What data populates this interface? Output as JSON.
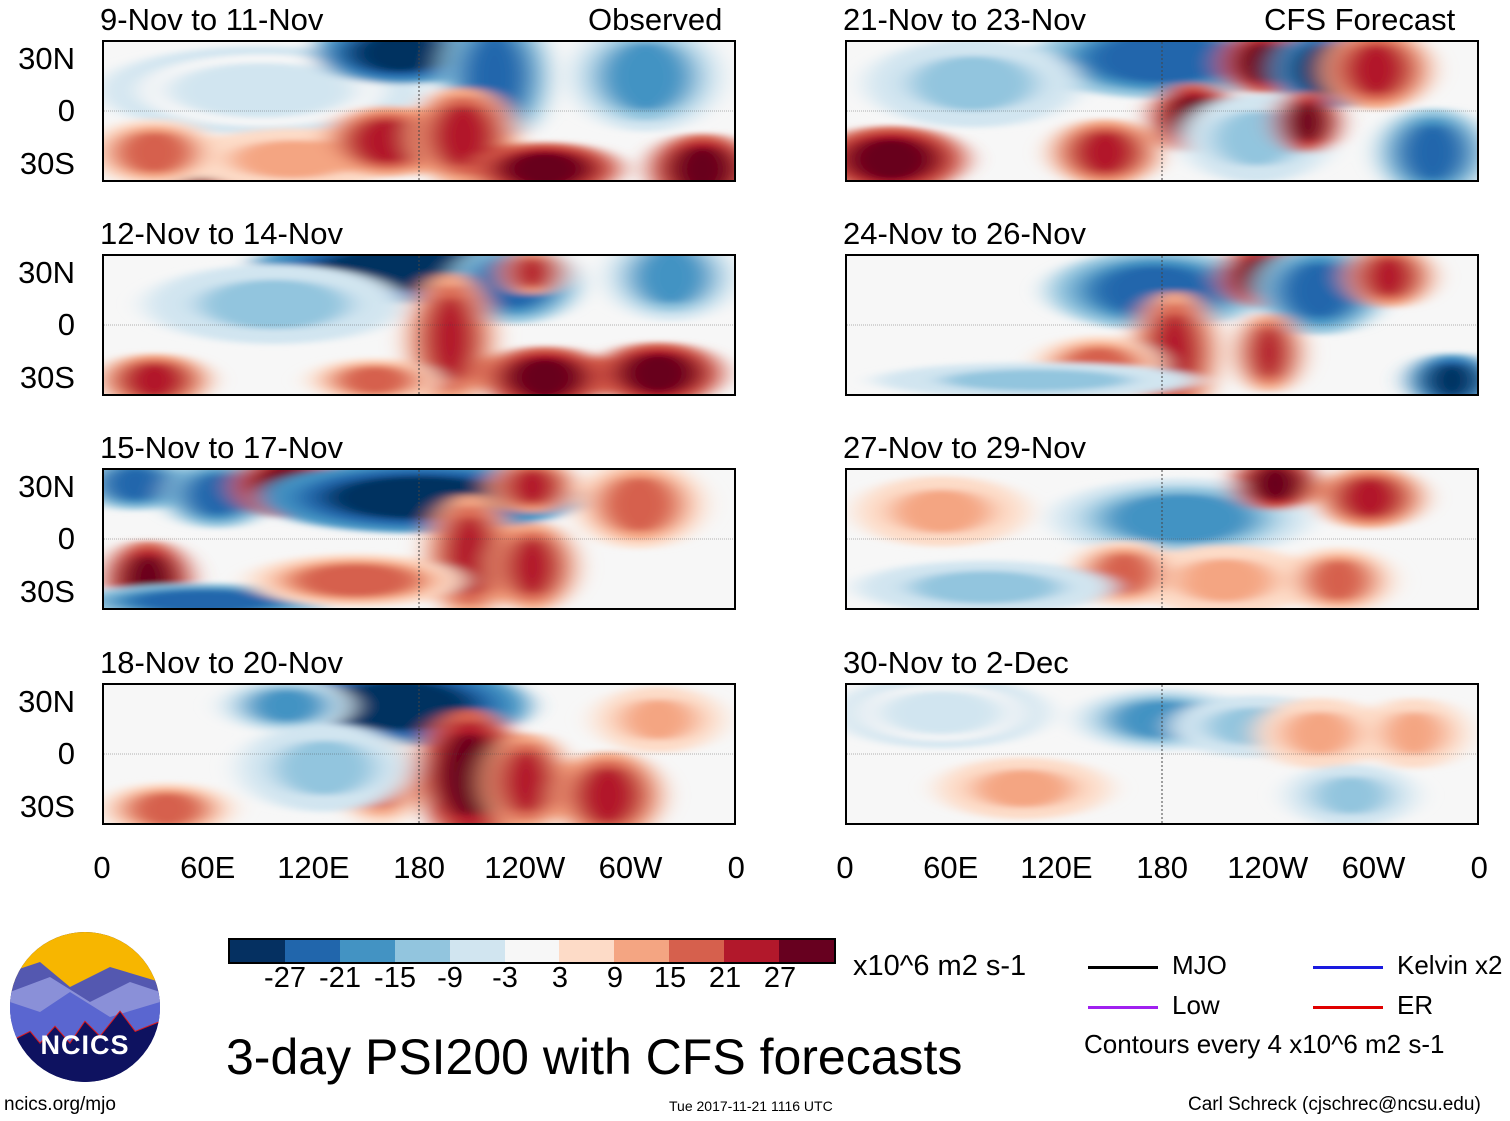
{
  "title": "3-day PSI200 with CFS forecasts",
  "left_header": "Observed",
  "right_header": "CFS Forecast",
  "panels_left": [
    "9-Nov to 11-Nov",
    "12-Nov to 14-Nov",
    "15-Nov to 17-Nov",
    "18-Nov to 20-Nov"
  ],
  "panels_right": [
    "21-Nov to 23-Nov",
    "24-Nov to 26-Nov",
    "27-Nov to 29-Nov",
    "30-Nov to 2-Dec"
  ],
  "lat_labels": [
    "30N",
    "0",
    "30S"
  ],
  "lon_labels": [
    "0",
    "60E",
    "120E",
    "180",
    "120W",
    "60W",
    "0"
  ],
  "colorbar": {
    "colors": [
      "#053061",
      "#2166ac",
      "#4393c3",
      "#92c5de",
      "#d1e5f0",
      "#f7f7f7",
      "#fddbc7",
      "#f4a582",
      "#d6604d",
      "#b2182b",
      "#67001f"
    ],
    "ticks": [
      "-27",
      "-21",
      "-15",
      "-9",
      "-3",
      "3",
      "9",
      "15",
      "21",
      "27"
    ],
    "units": "x10^6 m2 s-1"
  },
  "legend": {
    "items": [
      {
        "label": "MJO",
        "color": "#000000"
      },
      {
        "label": "Kelvin x2",
        "color": "#1a1adf"
      },
      {
        "label": "Low",
        "color": "#a020f0"
      },
      {
        "label": "ER",
        "color": "#e00000"
      }
    ],
    "contour_note": "Contours every 4 x10^6 m2 s-1"
  },
  "logo_text": "NCICS",
  "footer": {
    "left": "ncics.org/mjo",
    "center": "Tue 2017-11-21 1116 UTC",
    "right": "Carl Schreck (cjschrec@ncsu.edu)"
  }
}
